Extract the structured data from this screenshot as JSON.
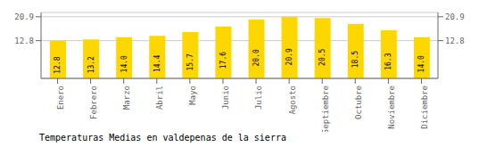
{
  "chart_data": {
    "type": "bar",
    "title": "Temperaturas Medias en valdepenas de la sierra",
    "categories": [
      "Enero",
      "Febrero",
      "Marzo",
      "Abril",
      "Mayo",
      "Junio",
      "Julio",
      "Agosto",
      "Septiembre",
      "Octubre",
      "Noviembre",
      "Diciembre"
    ],
    "values": [
      12.8,
      13.2,
      14.0,
      14.4,
      15.7,
      17.6,
      20.0,
      20.9,
      20.5,
      18.5,
      16.3,
      14.0
    ],
    "value_labels": [
      "12.8",
      "13.2",
      "14.0",
      "14.4",
      "15.7",
      "17.6",
      "20.0",
      "20.9",
      "20.5",
      "18.5",
      "16.3",
      "14.0"
    ],
    "color": "#FFD700",
    "ylim": [
      0,
      22.363
    ],
    "yticks": [
      12.8,
      20.9
    ],
    "grid": true,
    "data_labels": true
  }
}
